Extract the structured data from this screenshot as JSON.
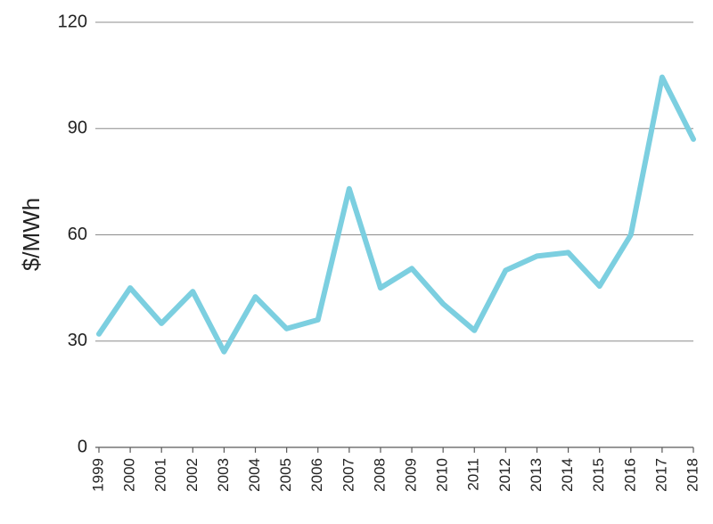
{
  "chart_data": {
    "type": "line",
    "title": "",
    "xlabel": "",
    "ylabel": "$/MWh",
    "ylim": [
      0,
      120
    ],
    "yticks": [
      0,
      30,
      60,
      90,
      120
    ],
    "grid": true,
    "x": [
      "1999",
      "2000",
      "2001",
      "2002",
      "2003",
      "2004",
      "2005",
      "2006",
      "2007",
      "2008",
      "2009",
      "2010",
      "2011",
      "2012",
      "2013",
      "2014",
      "2015",
      "2016",
      "2017",
      "2018"
    ],
    "series": [
      {
        "color": "#7ccfe0",
        "values": [
          32,
          45,
          35,
          44,
          27,
          42.5,
          33.5,
          36,
          73,
          45,
          50.5,
          40.5,
          33,
          50,
          54,
          55,
          45.5,
          60,
          104.5,
          87
        ]
      }
    ]
  }
}
